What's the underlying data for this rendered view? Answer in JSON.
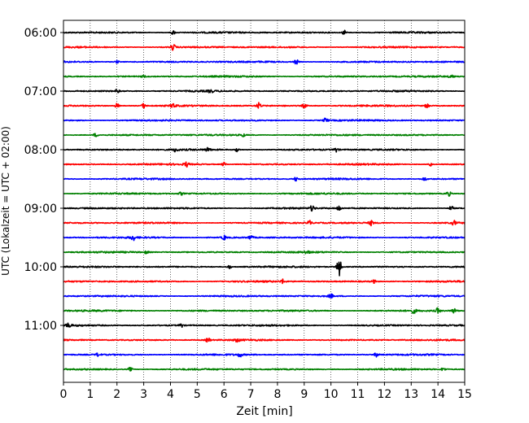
{
  "chart_data": {
    "type": "line",
    "title": "",
    "xlabel": "Zeit  [min]",
    "ylabel": "UTC (Lokalzeit = UTC + 02:00)",
    "xlim": [
      0,
      15
    ],
    "x_ticks": [
      "0",
      "1",
      "2",
      "3",
      "4",
      "5",
      "6",
      "7",
      "8",
      "9",
      "10",
      "11",
      "12",
      "13",
      "14",
      "15"
    ],
    "y_tick_labels": [
      "06:00",
      "07:00",
      "08:00",
      "09:00",
      "10:00",
      "11:00"
    ],
    "grid": "vertical dotted",
    "trace_interval_minutes": 15,
    "trace_colors": [
      "#000000",
      "#ff0000",
      "#0000ff",
      "#008000"
    ],
    "traces": [
      {
        "start": "06:00",
        "color": "#000000",
        "events": [
          [
            4.1,
            0.6
          ],
          [
            10.5,
            0.7
          ]
        ]
      },
      {
        "start": "06:15",
        "color": "#ff0000",
        "events": [
          [
            4.1,
            0.9
          ]
        ]
      },
      {
        "start": "06:30",
        "color": "#0000ff",
        "events": [
          [
            8.7,
            0.7
          ],
          [
            2.0,
            0.4
          ]
        ]
      },
      {
        "start": "06:45",
        "color": "#008000",
        "events": [
          [
            14.5,
            0.6
          ],
          [
            3.0,
            0.3
          ]
        ]
      },
      {
        "start": "07:00",
        "color": "#000000",
        "events": [
          [
            2.0,
            0.5
          ],
          [
            5.5,
            0.5
          ]
        ]
      },
      {
        "start": "07:15",
        "color": "#ff0000",
        "events": [
          [
            2.0,
            0.7
          ],
          [
            3.0,
            0.7
          ],
          [
            4.1,
            0.7
          ],
          [
            7.3,
            0.9
          ],
          [
            9.0,
            0.6
          ],
          [
            13.6,
            0.7
          ]
        ]
      },
      {
        "start": "07:30",
        "color": "#0000ff",
        "events": [
          [
            9.8,
            0.7
          ]
        ]
      },
      {
        "start": "07:45",
        "color": "#008000",
        "events": [
          [
            1.2,
            0.5
          ],
          [
            6.7,
            0.5
          ]
        ]
      },
      {
        "start": "08:00",
        "color": "#000000",
        "events": [
          [
            4.2,
            0.6
          ],
          [
            5.4,
            0.6
          ],
          [
            6.5,
            0.6
          ],
          [
            10.2,
            0.6
          ]
        ]
      },
      {
        "start": "08:15",
        "color": "#ff0000",
        "events": [
          [
            4.6,
            0.7
          ],
          [
            6.0,
            0.6
          ],
          [
            13.7,
            0.6
          ]
        ]
      },
      {
        "start": "08:30",
        "color": "#0000ff",
        "events": [
          [
            8.7,
            0.6
          ],
          [
            13.5,
            0.5
          ]
        ]
      },
      {
        "start": "08:45",
        "color": "#008000",
        "events": [
          [
            14.4,
            0.7
          ],
          [
            4.4,
            0.4
          ]
        ]
      },
      {
        "start": "09:00",
        "color": "#000000",
        "events": [
          [
            9.3,
            0.8
          ],
          [
            10.3,
            0.8
          ],
          [
            14.5,
            0.6
          ]
        ]
      },
      {
        "start": "09:15",
        "color": "#ff0000",
        "events": [
          [
            9.2,
            0.7
          ],
          [
            11.5,
            0.7
          ],
          [
            14.6,
            0.7
          ]
        ]
      },
      {
        "start": "09:30",
        "color": "#0000ff",
        "events": [
          [
            2.6,
            0.8
          ],
          [
            6.0,
            0.7
          ],
          [
            7.0,
            0.7
          ]
        ]
      },
      {
        "start": "09:45",
        "color": "#008000",
        "events": [
          [
            3.1,
            0.4
          ],
          [
            9.1,
            0.5
          ]
        ]
      },
      {
        "start": "10:00",
        "color": "#000000",
        "events": [
          [
            10.3,
            2.8
          ],
          [
            6.2,
            0.5
          ]
        ]
      },
      {
        "start": "10:15",
        "color": "#ff0000",
        "events": [
          [
            8.2,
            0.6
          ],
          [
            11.6,
            0.5
          ]
        ]
      },
      {
        "start": "10:30",
        "color": "#0000ff",
        "events": [
          [
            10.0,
            0.6
          ]
        ]
      },
      {
        "start": "10:45",
        "color": "#008000",
        "events": [
          [
            13.1,
            0.7
          ],
          [
            14.0,
            0.8
          ],
          [
            14.6,
            0.7
          ]
        ]
      },
      {
        "start": "11:00",
        "color": "#000000",
        "events": [
          [
            0.2,
            0.7
          ],
          [
            4.4,
            0.5
          ]
        ]
      },
      {
        "start": "11:15",
        "color": "#ff0000",
        "events": [
          [
            5.4,
            0.7
          ],
          [
            6.5,
            0.5
          ]
        ]
      },
      {
        "start": "11:30",
        "color": "#0000ff",
        "events": [
          [
            1.3,
            0.5
          ],
          [
            6.6,
            0.6
          ],
          [
            11.7,
            0.6
          ]
        ]
      },
      {
        "start": "11:45",
        "color": "#008000",
        "events": [
          [
            2.5,
            0.6
          ],
          [
            14.2,
            0.5
          ]
        ]
      }
    ]
  }
}
